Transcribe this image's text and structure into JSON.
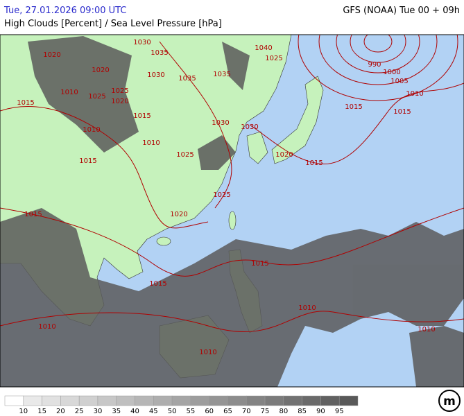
{
  "header": {
    "datetime": "Tue, 27.01.2026 09:00 UTC",
    "title": "High Clouds [Percent] / Sea Level Pressure [hPa]",
    "model": "GFS (NOAA) Tue 00 + 09h"
  },
  "isobar_labels": [
    1030,
    1035,
    1020,
    1040,
    1025,
    1020,
    1035,
    1030,
    1035,
    1025,
    1010,
    1025,
    1020,
    1015,
    1015,
    1030,
    1030,
    1010,
    1010,
    1025,
    1015,
    1025,
    1020,
    1015,
    1015,
    1015,
    1010,
    1010,
    1010,
    1010,
    1015,
    1015,
    1010,
    1005,
    1000,
    990,
    1015,
    1020
  ],
  "legend": [
    10,
    15,
    20,
    25,
    30,
    35,
    40,
    45,
    50,
    55,
    60,
    65,
    70,
    75,
    80,
    85,
    90,
    95
  ],
  "logo": "m"
}
